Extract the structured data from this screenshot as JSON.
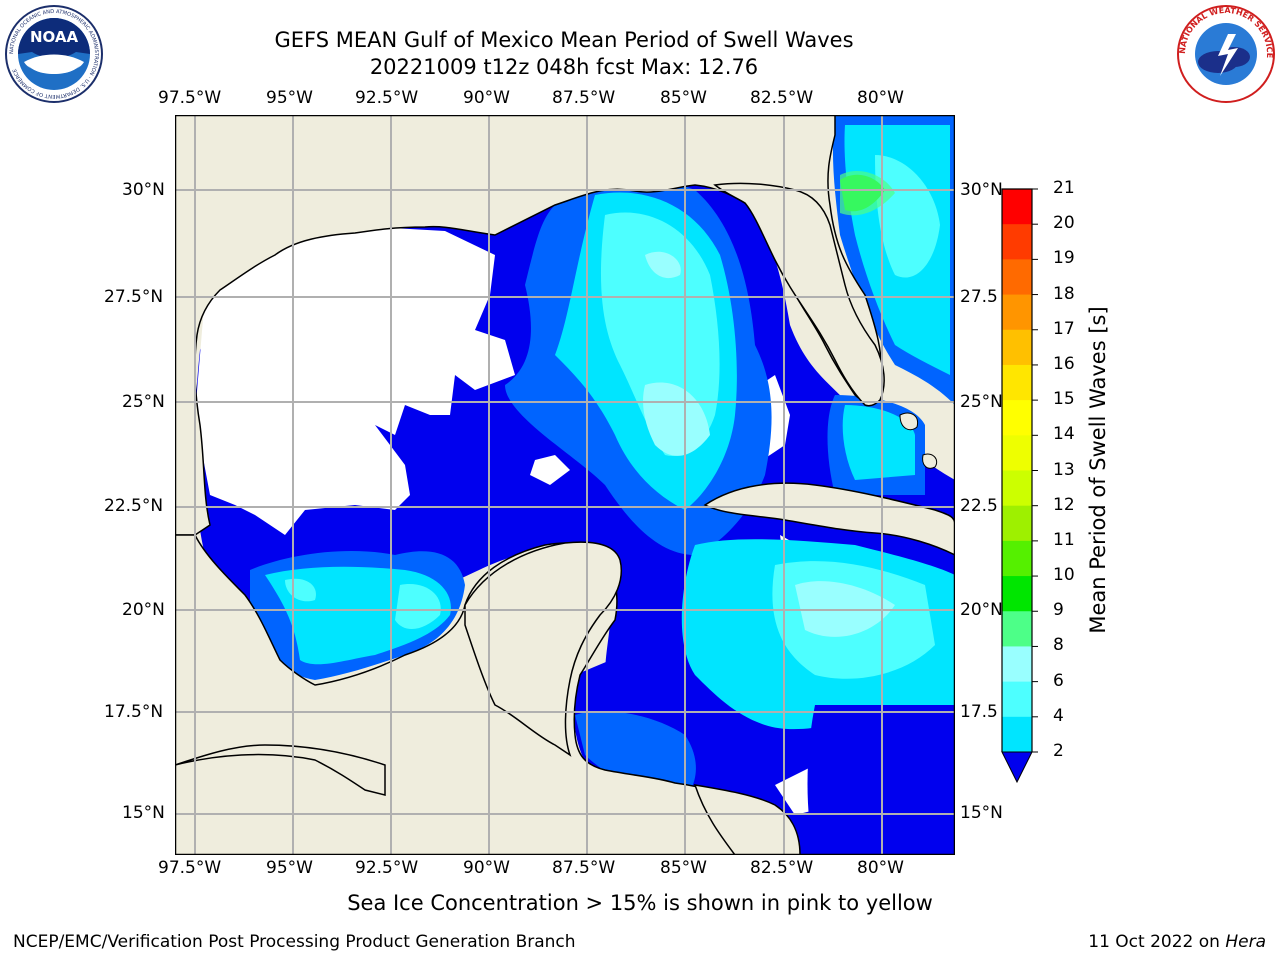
{
  "header": {
    "title_line1": "GEFS MEAN Gulf of Mexico Mean Period of Swell Waves",
    "title_line2": "20221009 t12z 048h fcst   Max: 12.76"
  },
  "map": {
    "lon_ticks_top": [
      "97.5°W",
      "95°W",
      "92.5°W",
      "90°W",
      "87.5°W",
      "85°W",
      "82.5°W",
      "80°W"
    ],
    "lon_ticks_bottom": [
      "97.5°W",
      "95°W",
      "92.5°W",
      "90°W",
      "87.5°W",
      "85°W",
      "82.5°W",
      "80°W"
    ],
    "lat_ticks_left": [
      "30°N",
      "27.5°N",
      "25°N",
      "22.5°N",
      "20°N",
      "17.5°N",
      "15°N"
    ],
    "lat_ticks_right": [
      "30°N",
      "27.5",
      "25°N",
      "22.5",
      "20°N",
      "17.5",
      "15°N"
    ],
    "colors": {
      "land": "#efeddd",
      "no_data": "#ffffff",
      "grid": "#b0b0b0",
      "coast": "#000000"
    }
  },
  "colorbar": {
    "label": "Mean Period of Swell Waves [s]",
    "ticks": [
      "21",
      "20",
      "19",
      "18",
      "17",
      "16",
      "15",
      "14",
      "13",
      "12",
      "11",
      "10",
      "9",
      "8",
      "6",
      "4",
      "2"
    ],
    "colors": [
      "#0000ee",
      "#0064ff",
      "#00e5ff",
      "#4dffff",
      "#99ffff",
      "#4dff88",
      "#00e600",
      "#55f000",
      "#9ef000",
      "#ccff00",
      "#eeff00",
      "#ffff00",
      "#ffe600",
      "#ffc000",
      "#ff9500",
      "#ff6a00",
      "#ff3b00",
      "#ff0000"
    ]
  },
  "footer": {
    "ice_note": "Sea Ice Concentration > 15% is shown in pink to yellow",
    "producer": "NCEP/EMC/Verification Post Processing Product Generation Branch",
    "date_prefix": "11 Oct 2022 on ",
    "machine": "Hera"
  },
  "logos": {
    "noaa_text": "NOAA",
    "noaa_ring_text": "NATIONAL OCEANIC AND ATMOSPHERIC ADMINISTRATION · U.S. DEPARTMENT OF COMMERCE",
    "nws_ring_text": "NATIONAL WEATHER SERVICE"
  }
}
